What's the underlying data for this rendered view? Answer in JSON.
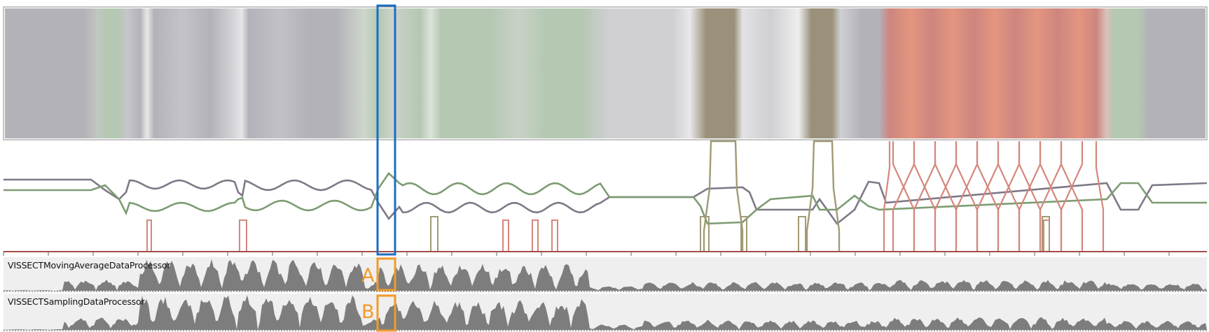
{
  "colors": {
    "neutral": "#b3b2b9",
    "neutral_light": "#cfcfd4",
    "green": "#b4c8b2",
    "olive": "#9b917a",
    "red": "#cd857f",
    "salmon": "#e3967f",
    "line_gray": "#7f7887",
    "line_green": "#7c9c72",
    "line_olive": "#a09a76",
    "line_red": "#d4877c",
    "density_fill": "#7d7d7d",
    "track_bg": "#efefef",
    "selection_blue": "#1a6fc2",
    "selection_orange": "#f39a2a",
    "axis_red": "#c05040"
  },
  "tracks": [
    {
      "label": "VISSECTMovingAverageDataProcessor",
      "marker": "A"
    },
    {
      "label": "VISSECTSamplingDataProcessor",
      "marker": "B"
    }
  ]
}
